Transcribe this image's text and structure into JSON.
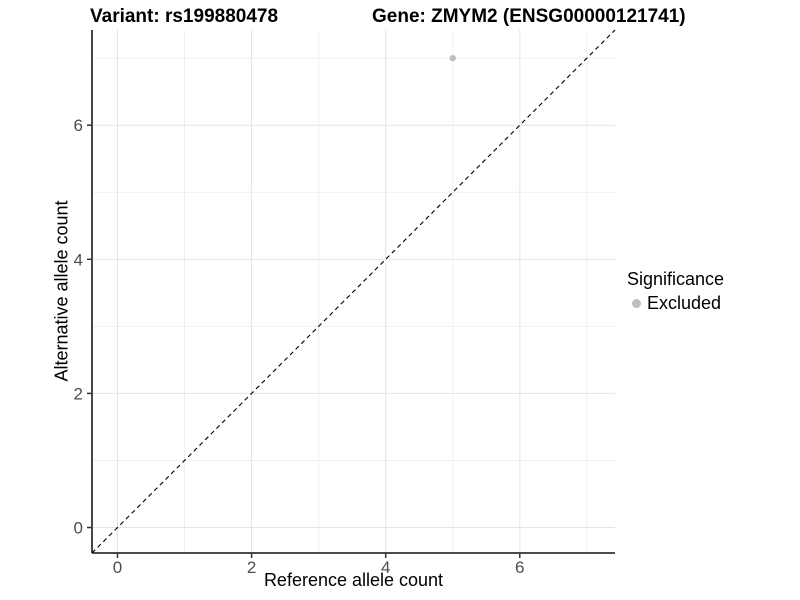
{
  "chart_data": {
    "type": "scatter",
    "title_left": "Variant: rs199880478",
    "title_right": "Gene: ZMYM2 (ENSG00000121741)",
    "xlabel": "Reference allele count",
    "ylabel": "Alternative allele count",
    "xlim": [
      -0.38,
      7.42
    ],
    "ylim": [
      -0.38,
      7.42
    ],
    "xticks": [
      0,
      2,
      4,
      6
    ],
    "yticks": [
      0,
      2,
      4,
      6
    ],
    "xticks_minor": [
      1,
      3,
      5,
      7
    ],
    "yticks_minor": [
      1,
      3,
      5,
      7
    ],
    "grid": true,
    "points": [
      {
        "x": 5,
        "y": 7,
        "series": "Excluded"
      }
    ],
    "reference_line": {
      "kind": "identity",
      "slope": 1,
      "intercept": 0,
      "style": "dashed",
      "color": "#000000"
    },
    "legend": {
      "title": "Significance",
      "position": "right",
      "items": [
        {
          "label": "Excluded",
          "color": "#BEBEBE",
          "marker": "circle"
        }
      ]
    },
    "colors": {
      "point": "#BEBEBE",
      "axis_line": "#333333",
      "tick_mark": "#333333",
      "tick_label": "#4D4D4D",
      "grid_major": "#E4E4E4",
      "grid_minor": "#F0F0F0",
      "background": "#FFFFFF"
    }
  }
}
